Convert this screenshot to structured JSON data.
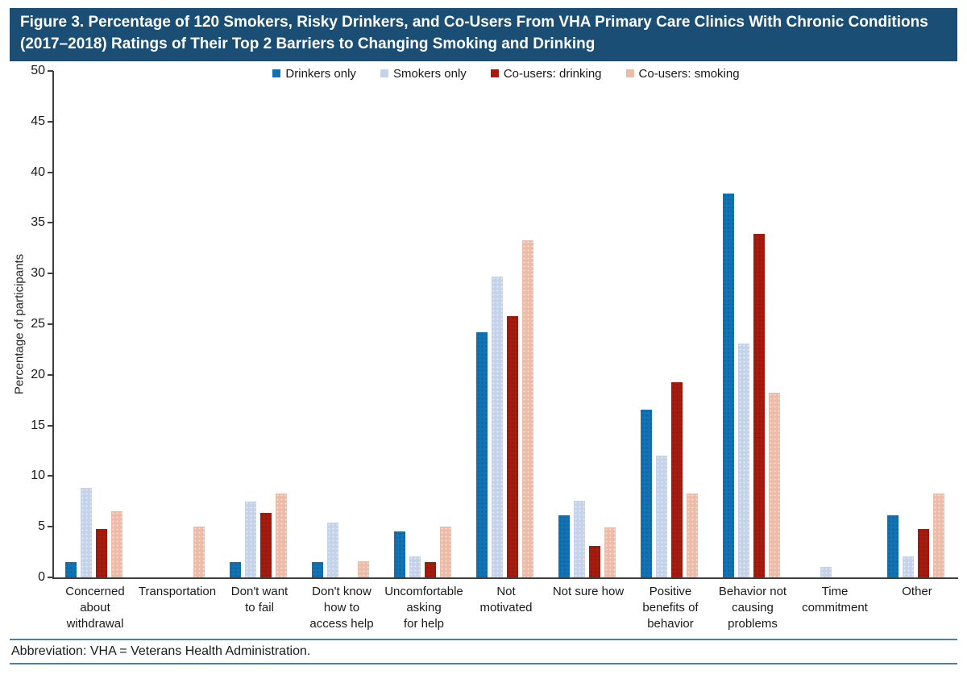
{
  "figure": {
    "title": "Figure 3. Percentage of 120 Smokers, Risky Drinkers, and Co-Users From VHA Primary Care Clinics With Chronic Conditions (2017–2018) Ratings of Their Top 2 Barriers to Changing Smoking and Drinking"
  },
  "colors": {
    "title_bar_bg": "#1b4e74",
    "title_text": "#ffffff",
    "axis": "#3f3f3f",
    "footer_rule": "#4d7eac",
    "drinkers_only": "#1273b4",
    "smokers_only": "#c5d3ea",
    "co_users_drinking": "#a51c0f",
    "co_users_smoking": "#edbca8"
  },
  "chart_data": {
    "type": "bar",
    "title": "",
    "xlabel": "",
    "ylabel": "Percentage of participants",
    "ylim": [
      0,
      50
    ],
    "yticks": [
      0,
      5,
      10,
      15,
      20,
      25,
      30,
      35,
      40,
      45,
      50
    ],
    "grid": false,
    "legend_position": "top-center",
    "categories": [
      "Concerned about withdrawal",
      "Transportation",
      "Don't want to fail",
      "Don't know how to access help",
      "Uncomfortable asking for help",
      "Not motivated",
      "Not sure how",
      "Positive benefits of behavior",
      "Behavior not causing problems",
      "Time commitment",
      "Other"
    ],
    "category_label_lines": [
      [
        "Concerned",
        "about",
        "withdrawal"
      ],
      [
        "Transportation"
      ],
      [
        "Don't want",
        "to fail"
      ],
      [
        "Don't know",
        "how to",
        "access help"
      ],
      [
        "Uncomfortable",
        "asking",
        "for help"
      ],
      [
        "Not",
        "motivated"
      ],
      [
        "Not sure how"
      ],
      [
        "Positive",
        "benefits of",
        "behavior"
      ],
      [
        "Behavior not",
        "causing",
        "problems"
      ],
      [
        "Time",
        "commitment"
      ],
      [
        "Other"
      ]
    ],
    "series": [
      {
        "name": "Drinkers only",
        "color": "#1273b4",
        "values": [
          1.5,
          0,
          1.5,
          1.5,
          4.5,
          24.2,
          6.1,
          16.6,
          37.9,
          0,
          6.1
        ]
      },
      {
        "name": "Smokers only",
        "color": "#c5d3ea",
        "values": [
          8.8,
          0,
          7.5,
          5.4,
          2.1,
          29.7,
          7.6,
          12.0,
          23.1,
          1.0,
          2.1
        ]
      },
      {
        "name": "Co-users: drinking",
        "color": "#a51c0f",
        "values": [
          4.8,
          0,
          6.4,
          0,
          1.5,
          25.8,
          3.1,
          19.3,
          33.9,
          0,
          4.8
        ]
      },
      {
        "name": "Co-users: smoking",
        "color": "#edbca8",
        "values": [
          6.5,
          5.0,
          8.3,
          1.6,
          5.0,
          33.3,
          4.9,
          8.3,
          18.2,
          0,
          8.3
        ]
      }
    ]
  },
  "footer": {
    "abbreviation": "Abbreviation: VHA = Veterans Health Administration."
  }
}
